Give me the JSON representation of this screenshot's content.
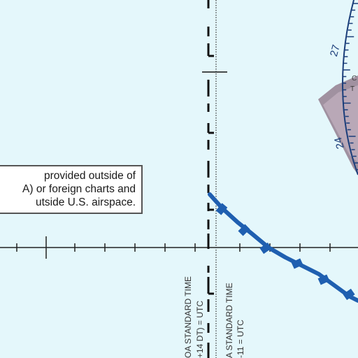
{
  "note": {
    "line1": "provided outside of",
    "line2": "A) or foreign charts and",
    "line3": "utside U.S. airspace."
  },
  "timezones": {
    "left_line1": "OA STANDARD TIME",
    "left_line2": "+14 DT) = UTC",
    "right_line1": "A STANDARD TIME",
    "right_line2": "-11 = UTC"
  },
  "compass_rose": {
    "label_27": "27",
    "label_24": "24",
    "frag_1": "C",
    "frag_2": "T"
  },
  "colors": {
    "background": "#e4f7fb",
    "boundary": "#1f5fb0",
    "rose": "#1b3e7a",
    "restricted_area": "#8a6f82"
  }
}
